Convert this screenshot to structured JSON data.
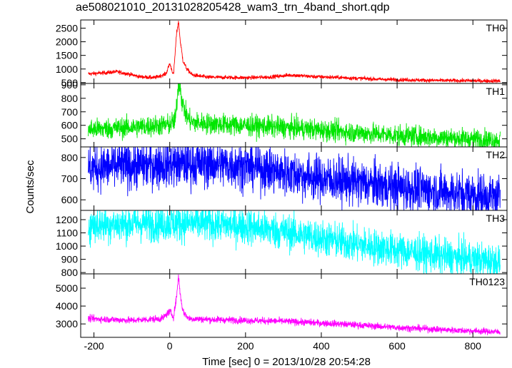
{
  "title": "ae508021010_20131028205428_wam3_trn_4band_short.qdp",
  "ylabel": "Counts/sec",
  "xlabel": "Time [sec] 0 = 2013/10/28 20:54:28",
  "chart_data": {
    "type": "line",
    "title": "ae508021010_20131028205428_wam3_trn_4band_short.qdp",
    "xlabel": "Time [sec] 0 = 2013/10/28 20:54:28",
    "ylabel": "Counts/sec",
    "xlim": [
      -235,
      890
    ],
    "xticks": [
      -200,
      0,
      200,
      400,
      600,
      800
    ],
    "x_range": [
      -215,
      872
    ],
    "grid": false,
    "panels": [
      {
        "name": "TH0",
        "color": "#ff0000",
        "ylim": [
          470,
          2800
        ],
        "yticks": [
          500,
          1000,
          1500,
          2000,
          2500
        ],
        "noise": 25,
        "profile": [
          [
            -215,
            820
          ],
          [
            -180,
            850
          ],
          [
            -140,
            900
          ],
          [
            -110,
            820
          ],
          [
            -80,
            720
          ],
          [
            -40,
            680
          ],
          [
            -10,
            820
          ],
          [
            0,
            1200
          ],
          [
            10,
            780
          ],
          [
            18,
            2300
          ],
          [
            23,
            2750
          ],
          [
            28,
            2000
          ],
          [
            35,
            1300
          ],
          [
            45,
            1000
          ],
          [
            60,
            780
          ],
          [
            100,
            700
          ],
          [
            200,
            680
          ],
          [
            260,
            700
          ],
          [
            320,
            780
          ],
          [
            380,
            720
          ],
          [
            460,
            680
          ],
          [
            560,
            620
          ],
          [
            700,
            580
          ],
          [
            872,
            560
          ]
        ]
      },
      {
        "name": "TH1",
        "color": "#00e600",
        "ylim": [
          440,
          910
        ],
        "yticks": [
          500,
          600,
          700,
          800,
          900
        ],
        "noise": 28,
        "profile": [
          [
            -215,
            570
          ],
          [
            -100,
            585
          ],
          [
            0,
            605
          ],
          [
            15,
            640
          ],
          [
            22,
            880
          ],
          [
            27,
            920
          ],
          [
            32,
            780
          ],
          [
            45,
            660
          ],
          [
            60,
            620
          ],
          [
            150,
            605
          ],
          [
            300,
            585
          ],
          [
            450,
            555
          ],
          [
            600,
            525
          ],
          [
            750,
            505
          ],
          [
            872,
            490
          ]
        ]
      },
      {
        "name": "TH2",
        "color": "#0000ff",
        "ylim": [
          550,
          850
        ],
        "yticks": [
          600,
          700,
          800
        ],
        "noise": 38,
        "profile": [
          [
            -215,
            750
          ],
          [
            -100,
            760
          ],
          [
            0,
            770
          ],
          [
            100,
            770
          ],
          [
            200,
            760
          ],
          [
            300,
            730
          ],
          [
            400,
            700
          ],
          [
            500,
            680
          ],
          [
            600,
            660
          ],
          [
            700,
            640
          ],
          [
            800,
            625
          ],
          [
            872,
            610
          ]
        ]
      },
      {
        "name": "TH3",
        "color": "#00ffff",
        "ylim": [
          790,
          1270
        ],
        "yticks": [
          800,
          900,
          1000,
          1100,
          1200
        ],
        "noise": 45,
        "profile": [
          [
            -215,
            1160
          ],
          [
            -100,
            1170
          ],
          [
            0,
            1175
          ],
          [
            100,
            1170
          ],
          [
            200,
            1150
          ],
          [
            300,
            1110
          ],
          [
            400,
            1060
          ],
          [
            500,
            1010
          ],
          [
            600,
            970
          ],
          [
            700,
            930
          ],
          [
            800,
            900
          ],
          [
            872,
            880
          ]
        ]
      },
      {
        "name": "TH0123",
        "color": "#ff00ff",
        "ylim": [
          2250,
          5800
        ],
        "yticks": [
          3000,
          4000,
          5000
        ],
        "noise": 50,
        "profile": [
          [
            -215,
            3300
          ],
          [
            -100,
            3200
          ],
          [
            -20,
            3300
          ],
          [
            0,
            3700
          ],
          [
            10,
            3400
          ],
          [
            18,
            4500
          ],
          [
            23,
            5700
          ],
          [
            28,
            4600
          ],
          [
            35,
            3700
          ],
          [
            50,
            3300
          ],
          [
            100,
            3250
          ],
          [
            200,
            3200
          ],
          [
            300,
            3150
          ],
          [
            450,
            3000
          ],
          [
            600,
            2800
          ],
          [
            750,
            2650
          ],
          [
            872,
            2550
          ]
        ]
      }
    ]
  }
}
